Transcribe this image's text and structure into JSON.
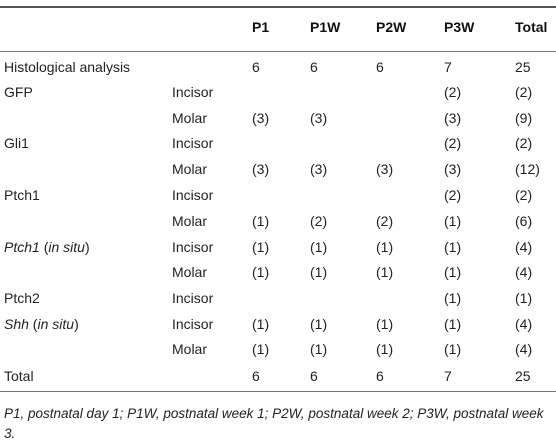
{
  "header": {
    "p1": "P1",
    "p1w": "P1W",
    "p2w": "P2W",
    "p3w": "P3W",
    "total": "Total"
  },
  "rows": [
    {
      "label": "Histological analysis",
      "label_italic": "",
      "label_rest": "",
      "sub": "",
      "p1": "6",
      "p1w": "6",
      "p2w": "6",
      "p3w": "7",
      "total": "25"
    },
    {
      "label": "GFP",
      "label_italic": "",
      "label_rest": "",
      "sub": "Incisor",
      "p1": "",
      "p1w": "",
      "p2w": "",
      "p3w": "(2)",
      "total": "(2)"
    },
    {
      "label": "",
      "label_italic": "",
      "label_rest": "",
      "sub": "Molar",
      "p1": "(3)",
      "p1w": "(3)",
      "p2w": "",
      "p3w": "(3)",
      "total": "(9)"
    },
    {
      "label": "Gli1",
      "label_italic": "",
      "label_rest": "",
      "sub": "Incisor",
      "p1": "",
      "p1w": "",
      "p2w": "",
      "p3w": "(2)",
      "total": "(2)"
    },
    {
      "label": "",
      "label_italic": "",
      "label_rest": "",
      "sub": "Molar",
      "p1": "(3)",
      "p1w": "(3)",
      "p2w": "(3)",
      "p3w": "(3)",
      "total": "(12)"
    },
    {
      "label": "Ptch1",
      "label_italic": "",
      "label_rest": "",
      "sub": "Incisor",
      "p1": "",
      "p1w": "",
      "p2w": "",
      "p3w": "(2)",
      "total": "(2)"
    },
    {
      "label": "",
      "label_italic": "",
      "label_rest": "",
      "sub": "Molar",
      "p1": "(1)",
      "p1w": "(2)",
      "p2w": "(2)",
      "p3w": "(1)",
      "total": "(6)"
    },
    {
      "label": "",
      "label_italic": "Ptch1",
      "label_rest": " (in situ)",
      "sub": "Incisor",
      "p1": "(1)",
      "p1w": "(1)",
      "p2w": "(1)",
      "p3w": "(1)",
      "total": "(4)"
    },
    {
      "label": "",
      "label_italic": "",
      "label_rest": "",
      "sub": "Molar",
      "p1": "(1)",
      "p1w": "(1)",
      "p2w": "(1)",
      "p3w": "(1)",
      "total": "(4)"
    },
    {
      "label": "Ptch2",
      "label_italic": "",
      "label_rest": "",
      "sub": "Incisor",
      "p1": "",
      "p1w": "",
      "p2w": "",
      "p3w": "(1)",
      "total": "(1)"
    },
    {
      "label": "",
      "label_italic": "Shh",
      "label_rest": " (in situ)",
      "sub": "Incisor",
      "p1": "(1)",
      "p1w": "(1)",
      "p2w": "(1)",
      "p3w": "(1)",
      "total": "(4)"
    },
    {
      "label": "",
      "label_italic": "",
      "label_rest": "",
      "sub": "Molar",
      "p1": "(1)",
      "p1w": "(1)",
      "p2w": "(1)",
      "p3w": "(1)",
      "total": "(4)"
    },
    {
      "label": "Total",
      "label_italic": "",
      "label_rest": "",
      "sub": "",
      "p1": "6",
      "p1w": "6",
      "p2w": "6",
      "p3w": "7",
      "total": "25"
    }
  ],
  "footnote": "P1, postnatal day 1; P1W, postnatal week 1; P2W, postnatal week 2; P3W, postnatal week 3."
}
